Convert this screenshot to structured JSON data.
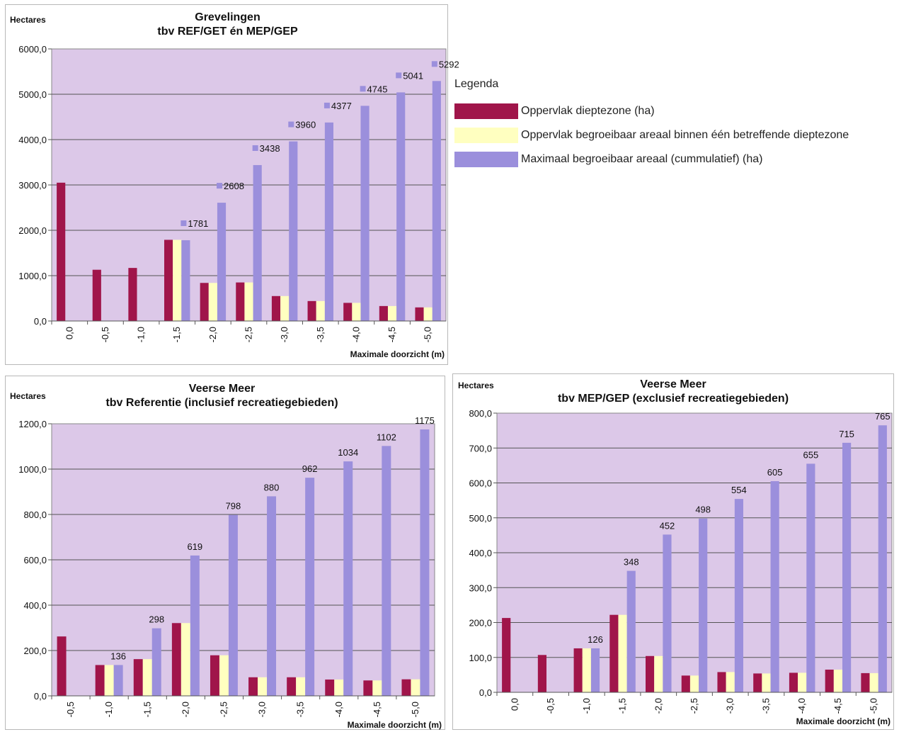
{
  "colors": {
    "series1": "#a0154a",
    "series2": "#ffffc0",
    "series3": "#9b8fdc",
    "plot_bg": "#dcc8e8",
    "grid": "#555555"
  },
  "legend": {
    "title": "Legenda",
    "items": [
      {
        "label": "Oppervlak dieptezone (ha)",
        "color": "#a0154a"
      },
      {
        "label": "Oppervlak begroeibaar areaal binnen één betreffende dieptezone",
        "color": "#ffffc0"
      },
      {
        "label": "Maximaal begroeibaar areaal (cummulatief) (ha)",
        "color": "#9b8fdc"
      }
    ]
  },
  "chart_data": [
    {
      "type": "bar",
      "title": "Grevelingen",
      "subtitle": "tbv REF/GET én MEP/GEP",
      "ylabel": "Hectares",
      "xlabel": "Maximale doorzicht (m)",
      "ylim": [
        0,
        6000
      ],
      "yticks": [
        "0,0",
        "1000,0",
        "2000,0",
        "3000,0",
        "4000,0",
        "5000,0",
        "6000,0"
      ],
      "categories": [
        "0,0",
        "-0,5",
        "-1,0",
        "-1,5",
        "-2,0",
        "-2,5",
        "-3,0",
        "-3,5",
        "-4,0",
        "-4,5",
        "-5,0"
      ],
      "grid": true,
      "series": [
        {
          "values": [
            3050,
            1130,
            1170,
            1790,
            840,
            850,
            550,
            440,
            400,
            330,
            300
          ]
        },
        {
          "values": [
            0,
            0,
            0,
            1790,
            840,
            850,
            550,
            440,
            400,
            330,
            300
          ]
        },
        {
          "values": [
            0,
            0,
            0,
            1781,
            2608,
            3438,
            3960,
            4377,
            4745,
            5041,
            5292
          ]
        }
      ],
      "data_labels": [
        "",
        "",
        "",
        "1781",
        "2608",
        "3438",
        "3960",
        "4377",
        "4745",
        "5041",
        "5292"
      ],
      "label_marker": true
    },
    {
      "type": "bar",
      "title": "Veerse Meer",
      "subtitle": "tbv Referentie (inclusief recreatiegebieden)",
      "ylabel": "Hectares",
      "xlabel": "Maximale doorzicht (m)",
      "ylim": [
        0,
        1200
      ],
      "yticks": [
        "0,0",
        "200,0",
        "400,0",
        "600,0",
        "800,0",
        "1000,0",
        "1200,0"
      ],
      "categories": [
        "-0,5",
        "-1,0",
        "-1,5",
        "-2,0",
        "-2,5",
        "-3,0",
        "-3,5",
        "-4,0",
        "-4,5",
        "-5,0"
      ],
      "grid": true,
      "series": [
        {
          "values": [
            262,
            136,
            162,
            321,
            179,
            82,
            82,
            72,
            68,
            73
          ]
        },
        {
          "values": [
            0,
            136,
            162,
            321,
            179,
            82,
            82,
            72,
            68,
            73
          ]
        },
        {
          "values": [
            0,
            136,
            298,
            619,
            798,
            880,
            962,
            1034,
            1102,
            1175
          ]
        }
      ],
      "data_labels": [
        "",
        "136",
        "298",
        "619",
        "798",
        "880",
        "962",
        "1034",
        "1102",
        "1175"
      ],
      "label_marker": false
    },
    {
      "type": "bar",
      "title": "Veerse Meer",
      "subtitle": "tbv MEP/GEP (exclusief recreatiegebieden)",
      "ylabel": "Hectares",
      "xlabel": "Maximale doorzicht (m)",
      "ylim": [
        0,
        800
      ],
      "yticks": [
        "0,0",
        "100,0",
        "200,0",
        "300,0",
        "400,0",
        "500,0",
        "600,0",
        "700,0",
        "800,0"
      ],
      "categories": [
        "0,0",
        "-0,5",
        "-1,0",
        "-1,5",
        "-2,0",
        "-2,5",
        "-3,0",
        "-3,5",
        "-4,0",
        "-4,5",
        "-5,0"
      ],
      "grid": true,
      "series": [
        {
          "values": [
            213,
            107,
            126,
            222,
            104,
            48,
            58,
            54,
            56,
            65,
            55
          ]
        },
        {
          "values": [
            0,
            0,
            126,
            222,
            104,
            48,
            58,
            54,
            56,
            65,
            55
          ]
        },
        {
          "values": [
            0,
            0,
            126,
            348,
            452,
            498,
            554,
            605,
            655,
            715,
            765
          ]
        }
      ],
      "data_labels": [
        "",
        "",
        "126",
        "348",
        "452",
        "498",
        "554",
        "605",
        "655",
        "715",
        "765"
      ],
      "label_marker": false
    }
  ]
}
